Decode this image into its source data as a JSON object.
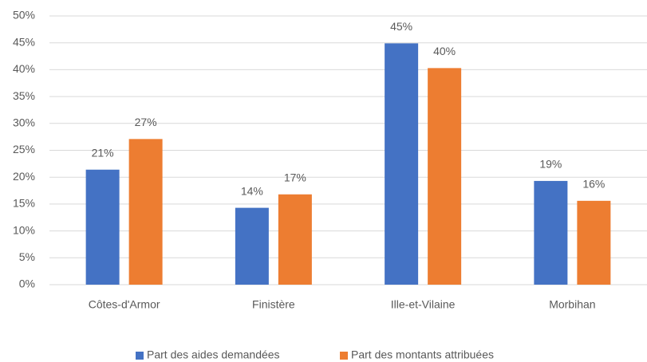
{
  "chart_data": {
    "type": "bar",
    "categories": [
      "Côtes-d'Armor",
      "Finistère",
      "Ille-et-Vilaine",
      "Morbihan"
    ],
    "series": [
      {
        "name": "Part des aides demandées",
        "color": "#4472c4",
        "values": [
          21.4,
          14.3,
          44.9,
          19.3
        ],
        "value_labels": [
          "21%",
          "14%",
          "45%",
          "19%"
        ]
      },
      {
        "name": "Part des montants attribuées",
        "color": "#ed7d31",
        "values": [
          27.1,
          16.8,
          40.3,
          15.6
        ],
        "value_labels": [
          "27%",
          "17%",
          "40%",
          "16%"
        ]
      }
    ],
    "ylim": [
      0,
      50
    ],
    "yticks": [
      {
        "value": 0,
        "label": "0%"
      },
      {
        "value": 5,
        "label": "5%"
      },
      {
        "value": 10,
        "label": "10%"
      },
      {
        "value": 15,
        "label": "15%"
      },
      {
        "value": 20,
        "label": "20%"
      },
      {
        "value": 25,
        "label": "25%"
      },
      {
        "value": 30,
        "label": "30%"
      },
      {
        "value": 35,
        "label": "35%"
      },
      {
        "value": 40,
        "label": "40%"
      },
      {
        "value": 45,
        "label": "45%"
      },
      {
        "value": 50,
        "label": "50%"
      }
    ],
    "grid": true,
    "legend": "bottom"
  }
}
